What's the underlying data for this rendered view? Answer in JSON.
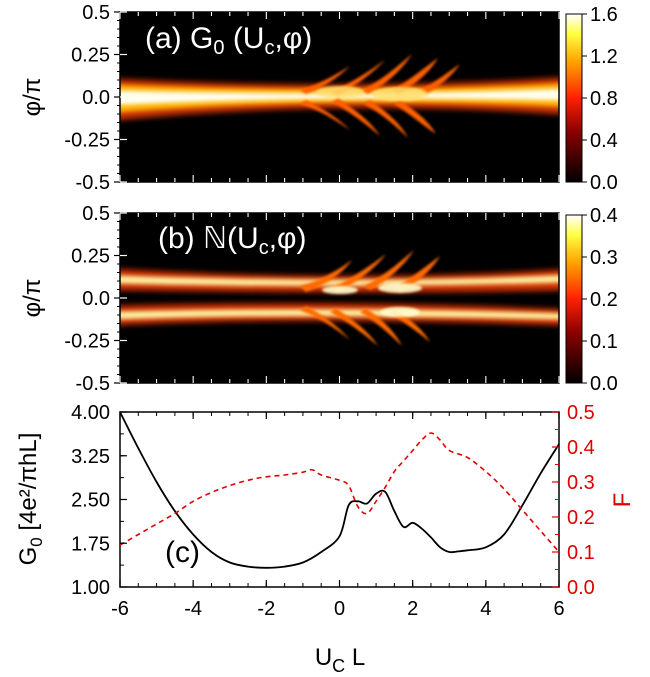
{
  "chart_data": [
    {
      "type": "heatmap",
      "panel_label": "(a)",
      "title_main": "G",
      "title_sub": "0",
      "title_args_open": " (U",
      "title_args_sub": "c",
      "title_args_close": ",φ)",
      "ylabel": "φ/π",
      "xlim": [
        -6,
        6
      ],
      "ylim": [
        -0.5,
        0.5
      ],
      "yticks": [
        "0.5",
        "0.25",
        "0.0",
        "-0.25",
        "-0.5"
      ],
      "yticks_values": [
        0.5,
        0.25,
        0.0,
        -0.25,
        -0.5
      ],
      "colorbar": {
        "range": [
          0.0,
          1.6
        ],
        "ticks": [
          "1.6",
          "1.2",
          "0.8",
          "0.4",
          "0.0"
        ],
        "tick_values": [
          1.6,
          1.2,
          0.8,
          0.4,
          0.0
        ]
      }
    },
    {
      "type": "heatmap",
      "panel_label": "(b)",
      "title_main": "ℕ",
      "title_sub": "",
      "title_args_open": "(U",
      "title_args_sub": "c",
      "title_args_close": ",φ)",
      "ylabel": "φ/π",
      "xlim": [
        -6,
        6
      ],
      "ylim": [
        -0.5,
        0.5
      ],
      "yticks": [
        "0.5",
        "0.25",
        "0.0",
        "-0.25",
        "-0.5"
      ],
      "yticks_values": [
        0.5,
        0.25,
        0.0,
        -0.25,
        -0.5
      ],
      "colorbar": {
        "range": [
          0.0,
          0.4
        ],
        "ticks": [
          "0.4",
          "0.3",
          "0.2",
          "0.1",
          "0.0"
        ],
        "tick_values": [
          0.4,
          0.3,
          0.2,
          0.1,
          0.0
        ]
      }
    },
    {
      "type": "line",
      "panel_label": "(c)",
      "xlabel_main": "U",
      "xlabel_sub": "C",
      "xlabel_tail": " L",
      "ylabel_left_main": "G",
      "ylabel_left_sub": "0",
      "ylabel_left_unit": "[4e²/πhL]",
      "ylabel_right": "F",
      "xlim": [
        -6,
        6
      ],
      "ylim_left": [
        1.0,
        4.0
      ],
      "ylim_right": [
        0.0,
        0.5
      ],
      "xticks": [
        "-6",
        "-4",
        "-2",
        "0",
        "2",
        "4",
        "6"
      ],
      "xticks_values": [
        -6,
        -4,
        -2,
        0,
        2,
        4,
        6
      ],
      "yticks_left": [
        "4.00",
        "3.25",
        "2.50",
        "1.75",
        "1.00"
      ],
      "yticks_left_values": [
        4.0,
        3.25,
        2.5,
        1.75,
        1.0
      ],
      "yticks_right": [
        "0.5",
        "0.4",
        "0.3",
        "0.2",
        "0.1",
        "0.0"
      ],
      "yticks_right_values": [
        0.5,
        0.4,
        0.3,
        0.2,
        0.1,
        0.0
      ],
      "series": [
        {
          "axis": "left",
          "style": "solid",
          "color": "#000000",
          "x": [
            -6,
            -5.5,
            -5,
            -4.5,
            -4,
            -3.5,
            -3,
            -2.5,
            -2,
            -1.5,
            -1,
            -0.5,
            0,
            0.25,
            0.5,
            0.75,
            1,
            1.25,
            1.5,
            1.75,
            2,
            2.25,
            2.5,
            2.75,
            3,
            3.25,
            3.5,
            4,
            4.5,
            5,
            5.5,
            6
          ],
          "y": [
            4.0,
            3.38,
            2.8,
            2.3,
            1.9,
            1.6,
            1.42,
            1.35,
            1.33,
            1.35,
            1.42,
            1.6,
            1.87,
            2.4,
            2.47,
            2.43,
            2.6,
            2.63,
            2.3,
            2.03,
            2.1,
            2.0,
            1.85,
            1.68,
            1.6,
            1.61,
            1.63,
            1.68,
            1.9,
            2.4,
            2.95,
            3.45
          ]
        },
        {
          "axis": "right",
          "style": "dashed",
          "color": "#e00000",
          "x": [
            -6,
            -5.5,
            -5,
            -4.5,
            -4,
            -3.5,
            -3,
            -2.5,
            -2,
            -1.5,
            -1,
            -0.75,
            -0.5,
            0,
            0.25,
            0.5,
            0.75,
            1,
            1.25,
            1.5,
            1.75,
            2,
            2.25,
            2.5,
            2.75,
            3,
            3.5,
            4,
            4.5,
            5,
            5.5,
            6
          ],
          "y": [
            0.12,
            0.15,
            0.18,
            0.21,
            0.245,
            0.27,
            0.29,
            0.305,
            0.315,
            0.32,
            0.328,
            0.335,
            0.32,
            0.305,
            0.29,
            0.23,
            0.21,
            0.245,
            0.285,
            0.33,
            0.36,
            0.39,
            0.42,
            0.44,
            0.42,
            0.39,
            0.37,
            0.33,
            0.28,
            0.22,
            0.16,
            0.1
          ]
        }
      ]
    }
  ]
}
